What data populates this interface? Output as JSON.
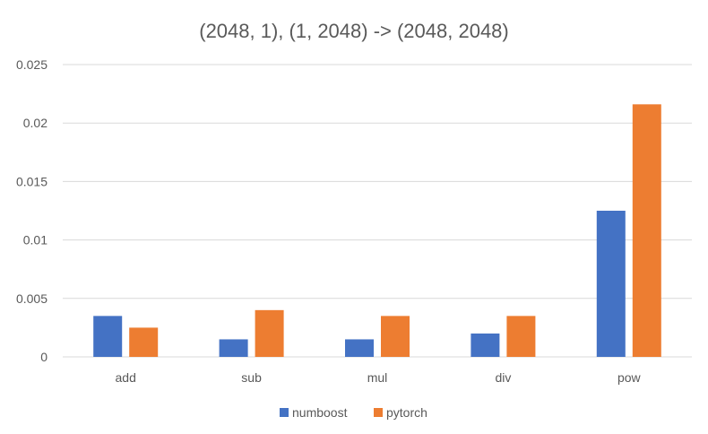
{
  "chart_data": {
    "type": "bar",
    "title": "(2048, 1), (1, 2048) -> (2048, 2048)",
    "xlabel": "",
    "ylabel": "",
    "categories": [
      "add",
      "sub",
      "mul",
      "div",
      "pow"
    ],
    "series": [
      {
        "name": "numboost",
        "color": "#4472C4",
        "values": [
          0.0035,
          0.0015,
          0.0015,
          0.002,
          0.0125
        ]
      },
      {
        "name": "pytorch",
        "color": "#ED7D31",
        "values": [
          0.0025,
          0.004,
          0.0035,
          0.0035,
          0.0216
        ]
      }
    ],
    "ylim": [
      0,
      0.025
    ],
    "yticks": [
      "0",
      "0.005",
      "0.01",
      "0.015",
      "0.02",
      "0.025"
    ],
    "ytick_values": [
      0,
      0.005,
      0.01,
      0.015,
      0.02,
      0.025
    ],
    "grid": true,
    "gridline_color": "#D9D9D9",
    "legend_position": "bottom"
  }
}
